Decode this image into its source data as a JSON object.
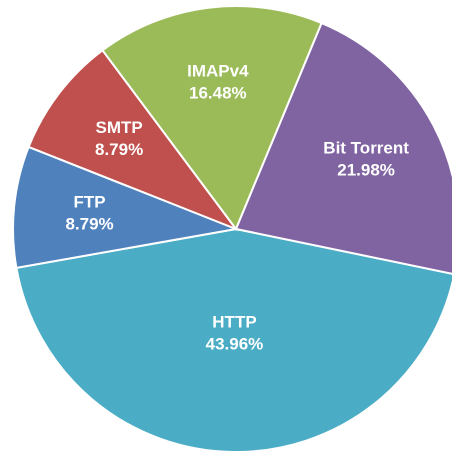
{
  "chart_data": {
    "type": "pie",
    "categories": [
      "HTTP",
      "FTP",
      "SMTP",
      "IMAPv4",
      "Bit Torrent"
    ],
    "values": [
      43.96,
      8.79,
      8.79,
      16.48,
      21.98
    ],
    "value_labels": [
      "43.96%",
      "8.79%",
      "8.79%",
      "16.48%",
      "21.98%"
    ],
    "colors": [
      "#4bacc6",
      "#4f81bd",
      "#c0504d",
      "#9bbb59",
      "#8064a2"
    ]
  }
}
